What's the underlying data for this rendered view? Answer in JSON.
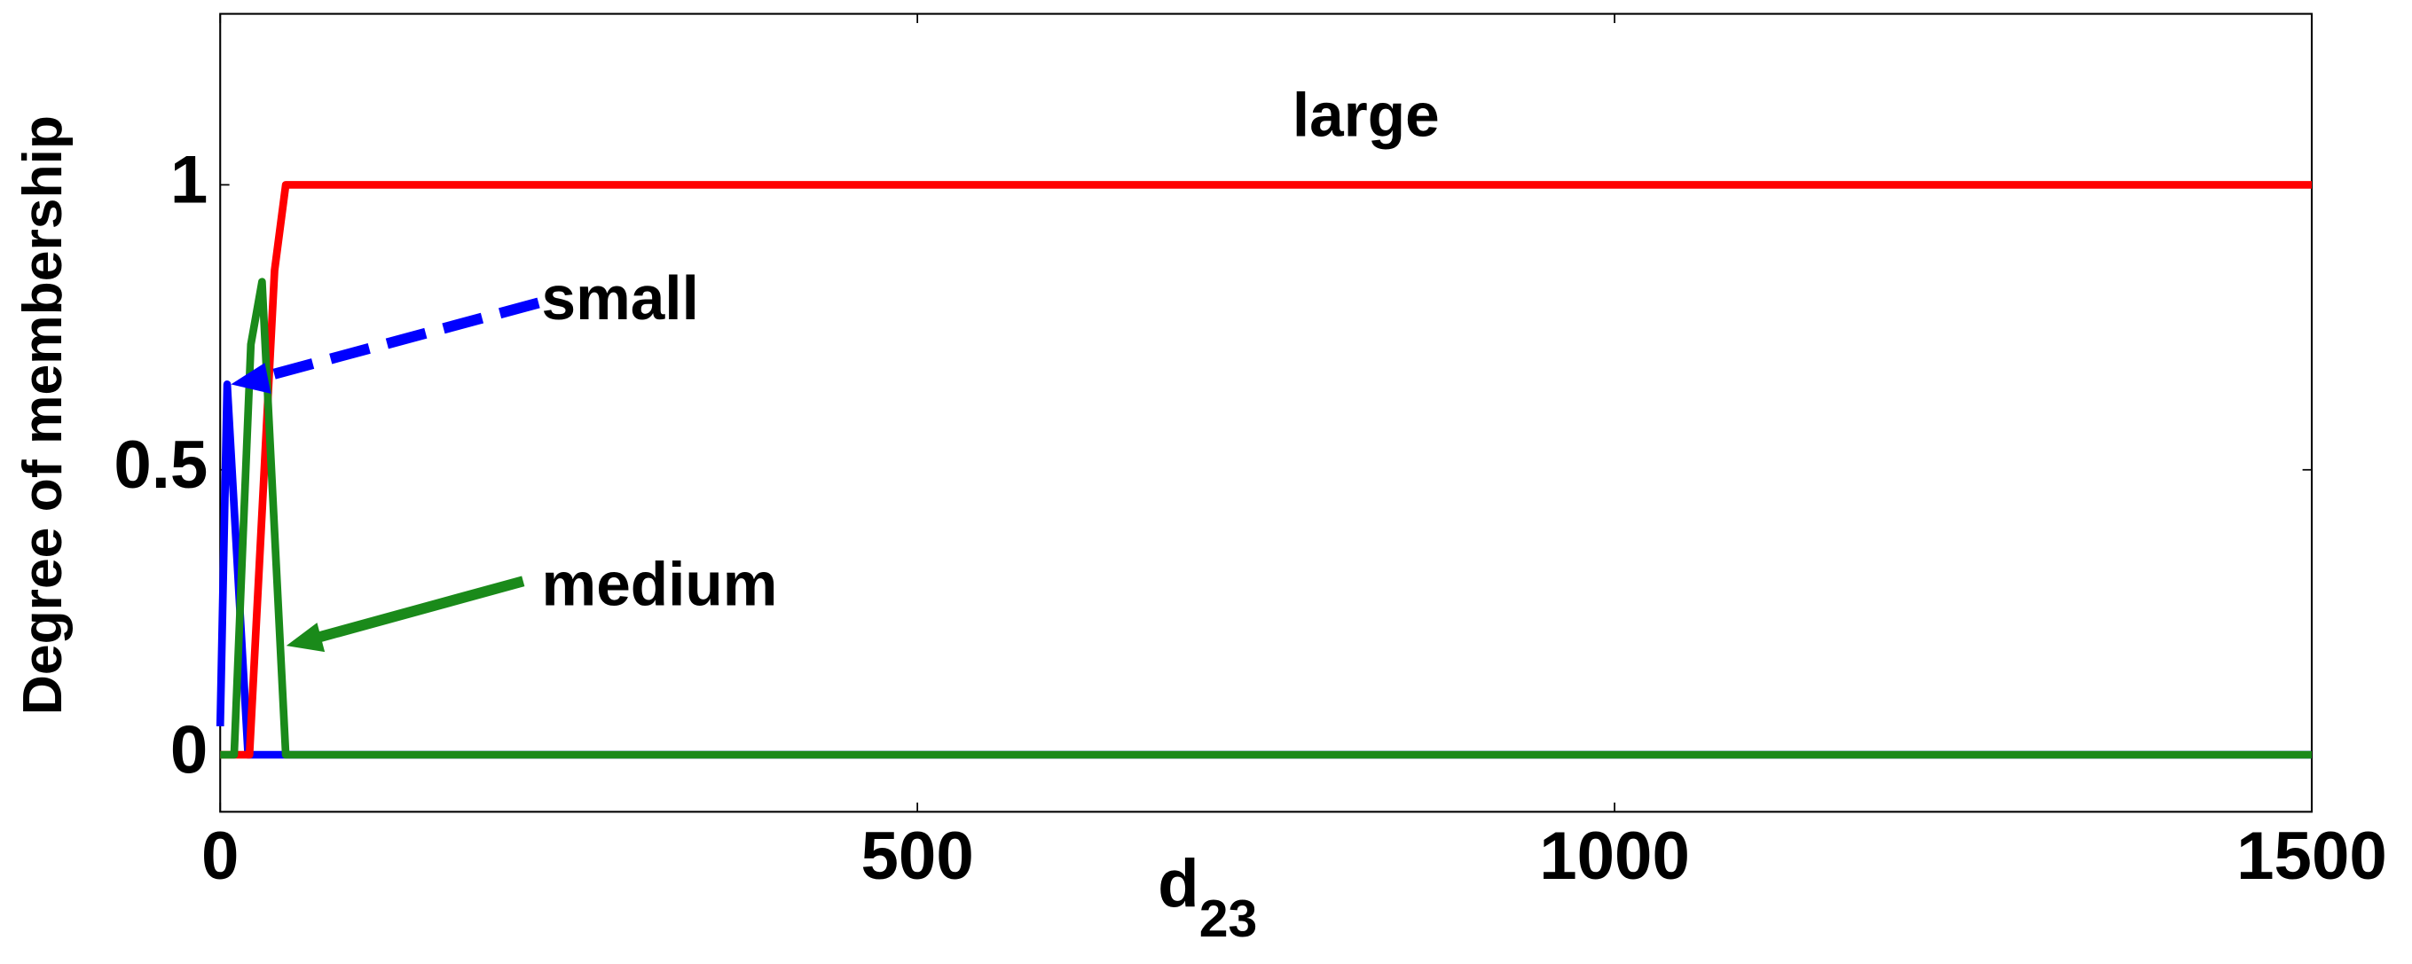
{
  "chart_data": {
    "type": "line",
    "xlabel": "d",
    "xlabel_subscript": "23",
    "ylabel": "Degree of membership",
    "xlim": [
      0,
      1500
    ],
    "ylim": [
      -0.1,
      1.3
    ],
    "xticks": [
      0,
      500,
      1000,
      1500
    ],
    "yticks": [
      0,
      0.5,
      1
    ],
    "series": [
      {
        "name": "small",
        "color": "#0000ff",
        "x": [
          0,
          5,
          20,
          1500
        ],
        "values": [
          0.05,
          0.65,
          0,
          0
        ]
      },
      {
        "name": "large",
        "color": "#ff0000",
        "x": [
          0,
          21,
          39,
          47,
          1500
        ],
        "values": [
          0,
          0,
          0.85,
          1,
          1
        ]
      },
      {
        "name": "medium",
        "color": "#1a8a1a",
        "x": [
          0,
          10,
          22,
          30,
          47,
          1500
        ],
        "values": [
          0,
          0,
          0.72,
          0.83,
          0,
          0
        ]
      }
    ]
  }
}
